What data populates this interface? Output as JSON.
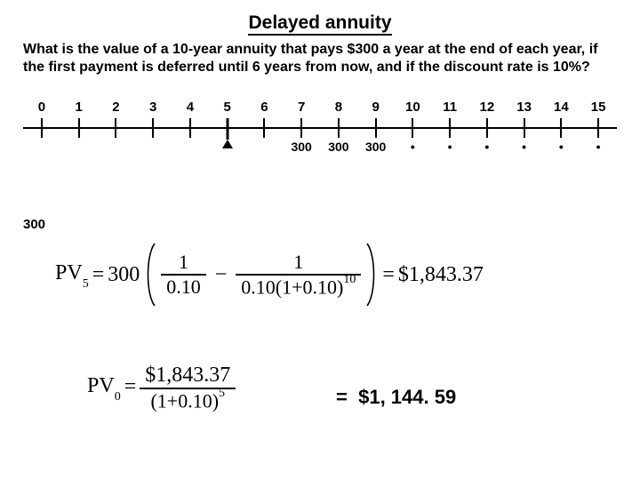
{
  "title": "Delayed annuity",
  "question": "What is the value of a 10-year annuity that pays $300 a year at the end of each year, if the first payment is deferred until 6 years from now, and if the discount rate is 10%?",
  "timeline": {
    "periods": [
      "0",
      "1",
      "2",
      "3",
      "4",
      "5",
      "6",
      "7",
      "8",
      "9",
      "10",
      "11",
      "12",
      "13",
      "14",
      "15"
    ],
    "payments": [
      "",
      "",
      "",
      "",
      "",
      "",
      "300",
      "300",
      "300",
      "•",
      "•",
      "•",
      "•",
      "•",
      "•"
    ],
    "arrow_index": 5,
    "side_label": "300"
  },
  "formula1": {
    "lhs_var": "PV",
    "lhs_sub": "5",
    "coeff": "300",
    "frac1_num": "1",
    "frac1_den": "0.10",
    "frac2_num": "1",
    "frac2_den_a": "0.10(1",
    "frac2_den_b": "0.10)",
    "frac2_exp": "10",
    "rhs": "$1,843.37"
  },
  "formula2": {
    "lhs_var": "PV",
    "lhs_sub": "0",
    "num": "$1,843.37",
    "den_a": "(1",
    "den_b": "0.10)",
    "exp": "5",
    "result_eq": "=",
    "result": "$1, 144. 59"
  },
  "style": {
    "title_fontsize": 21,
    "question_fontsize": 16,
    "math_fontsize": 24,
    "result_fontsize": 22,
    "tick_height": 22,
    "colors": {
      "text": "#000000",
      "bg": "#ffffff"
    }
  }
}
